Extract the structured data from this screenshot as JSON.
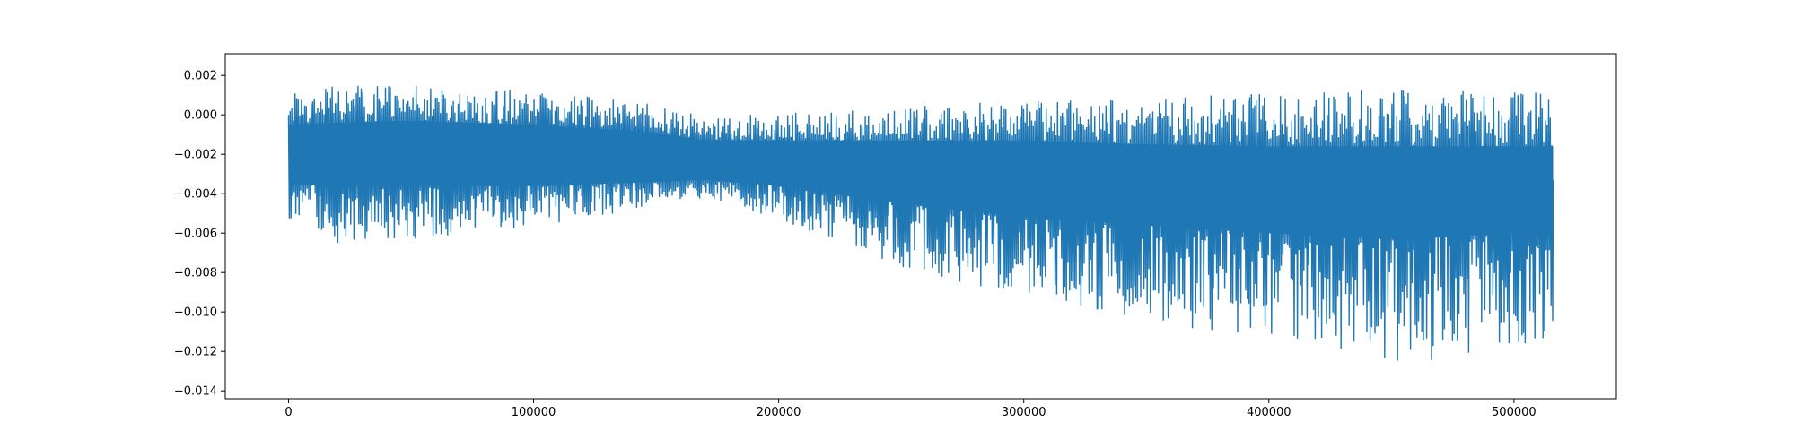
{
  "chart_data": {
    "type": "line",
    "title": "",
    "xlabel": "",
    "ylabel": "",
    "xlim": [
      -25800,
      541800
    ],
    "ylim": [
      -0.0144,
      0.0031
    ],
    "x_ticks": [
      {
        "value": 0,
        "label": "0"
      },
      {
        "value": 100000,
        "label": "100000"
      },
      {
        "value": 200000,
        "label": "200000"
      },
      {
        "value": 300000,
        "label": "300000"
      },
      {
        "value": 400000,
        "label": "400000"
      },
      {
        "value": 500000,
        "label": "500000"
      }
    ],
    "y_ticks": [
      {
        "value": 0.002,
        "label": "0.002"
      },
      {
        "value": 0.0,
        "label": "0.000"
      },
      {
        "value": -0.002,
        "label": "−0.002"
      },
      {
        "value": -0.004,
        "label": "−0.004"
      },
      {
        "value": -0.006,
        "label": "−0.006"
      },
      {
        "value": -0.008,
        "label": "−0.008"
      },
      {
        "value": -0.01,
        "label": "−0.010"
      },
      {
        "value": -0.012,
        "label": "−0.012"
      },
      {
        "value": -0.014,
        "label": "−0.014"
      }
    ],
    "grid": false,
    "series": [
      {
        "color": "#1f77b4",
        "x_range": [
          0,
          516000
        ],
        "start_value": 0.0,
        "end_value": -0.0033,
        "envelope_x": [
          0,
          20000,
          50000,
          100000,
          150000,
          170000,
          200000,
          250000,
          300000,
          350000,
          400000,
          430000,
          450000,
          470000,
          500000,
          516000
        ],
        "envelope_upper": [
          0.0012,
          0.0016,
          0.0015,
          0.0013,
          0.0006,
          -0.0001,
          0.0001,
          0.0004,
          0.0008,
          0.0009,
          0.0011,
          0.0013,
          0.0013,
          0.0012,
          0.0012,
          0.0011
        ],
        "envelope_lower": [
          -0.006,
          -0.0065,
          -0.0063,
          -0.0058,
          -0.0046,
          -0.0042,
          -0.0053,
          -0.0077,
          -0.0093,
          -0.0105,
          -0.0115,
          -0.0125,
          -0.013,
          -0.0125,
          -0.0118,
          -0.0115
        ],
        "core_upper": [
          -0.0005,
          -0.0004,
          -0.0003,
          -0.0005,
          -0.0009,
          -0.0013,
          -0.0013,
          -0.0013,
          -0.0013,
          -0.0015,
          -0.0016,
          -0.0016,
          -0.0016,
          -0.0016,
          -0.0016,
          -0.0016
        ],
        "core_lower": [
          -0.0035,
          -0.0036,
          -0.0036,
          -0.0036,
          -0.0034,
          -0.0033,
          -0.0036,
          -0.0045,
          -0.0052,
          -0.0056,
          -0.006,
          -0.0062,
          -0.0063,
          -0.0062,
          -0.006,
          -0.006
        ]
      }
    ]
  }
}
